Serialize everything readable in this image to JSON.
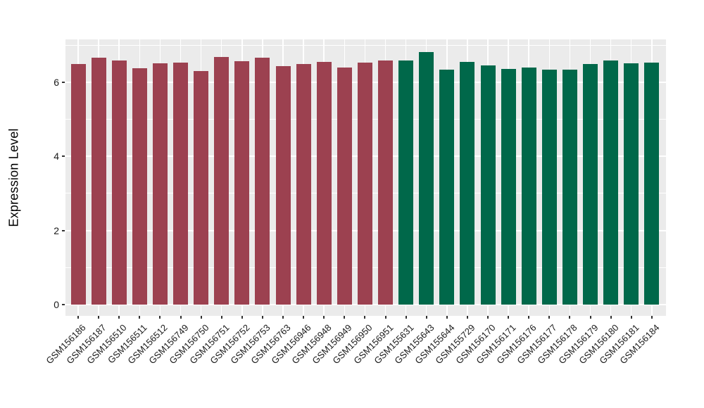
{
  "chart_data": {
    "type": "bar",
    "title": "",
    "xlabel": "",
    "ylabel": "Expression Level",
    "ylim": [
      -0.3,
      7.17
    ],
    "yticks": [
      "0",
      "2",
      "4",
      "6"
    ],
    "ytick_values": [
      0,
      2,
      4,
      6
    ],
    "yminor_values": [
      1,
      3,
      5,
      7
    ],
    "grid": "on",
    "legend_position": "none",
    "panel_background": "#EBEBEB",
    "grid_color": "#FFFFFF",
    "tick_color": "#333333",
    "categories": [
      "GSM156186",
      "GSM156187",
      "GSM156510",
      "GSM156511",
      "GSM156512",
      "GSM156749",
      "GSM156750",
      "GSM156751",
      "GSM156752",
      "GSM156753",
      "GSM156763",
      "GSM156946",
      "GSM156948",
      "GSM156949",
      "GSM156950",
      "GSM156951",
      "GSM155631",
      "GSM155643",
      "GSM155644",
      "GSM155729",
      "GSM156170",
      "GSM156171",
      "GSM156176",
      "GSM156177",
      "GSM156178",
      "GSM156179",
      "GSM156180",
      "GSM156181",
      "GSM156184"
    ],
    "values": [
      6.5,
      6.67,
      6.58,
      6.37,
      6.52,
      6.54,
      6.3,
      6.68,
      6.57,
      6.66,
      6.44,
      6.49,
      6.55,
      6.39,
      6.53,
      6.58,
      6.59,
      6.82,
      6.34,
      6.55,
      6.46,
      6.36,
      6.4,
      6.35,
      6.34,
      6.49,
      6.58,
      6.51,
      6.53
    ],
    "groups": [
      "A",
      "A",
      "A",
      "A",
      "A",
      "A",
      "A",
      "A",
      "A",
      "A",
      "A",
      "A",
      "A",
      "A",
      "A",
      "A",
      "B",
      "B",
      "B",
      "B",
      "B",
      "B",
      "B",
      "B",
      "B",
      "B",
      "B",
      "B",
      "B"
    ],
    "group_colors": {
      "A": "#9C4150",
      "B": "#00684A"
    }
  }
}
